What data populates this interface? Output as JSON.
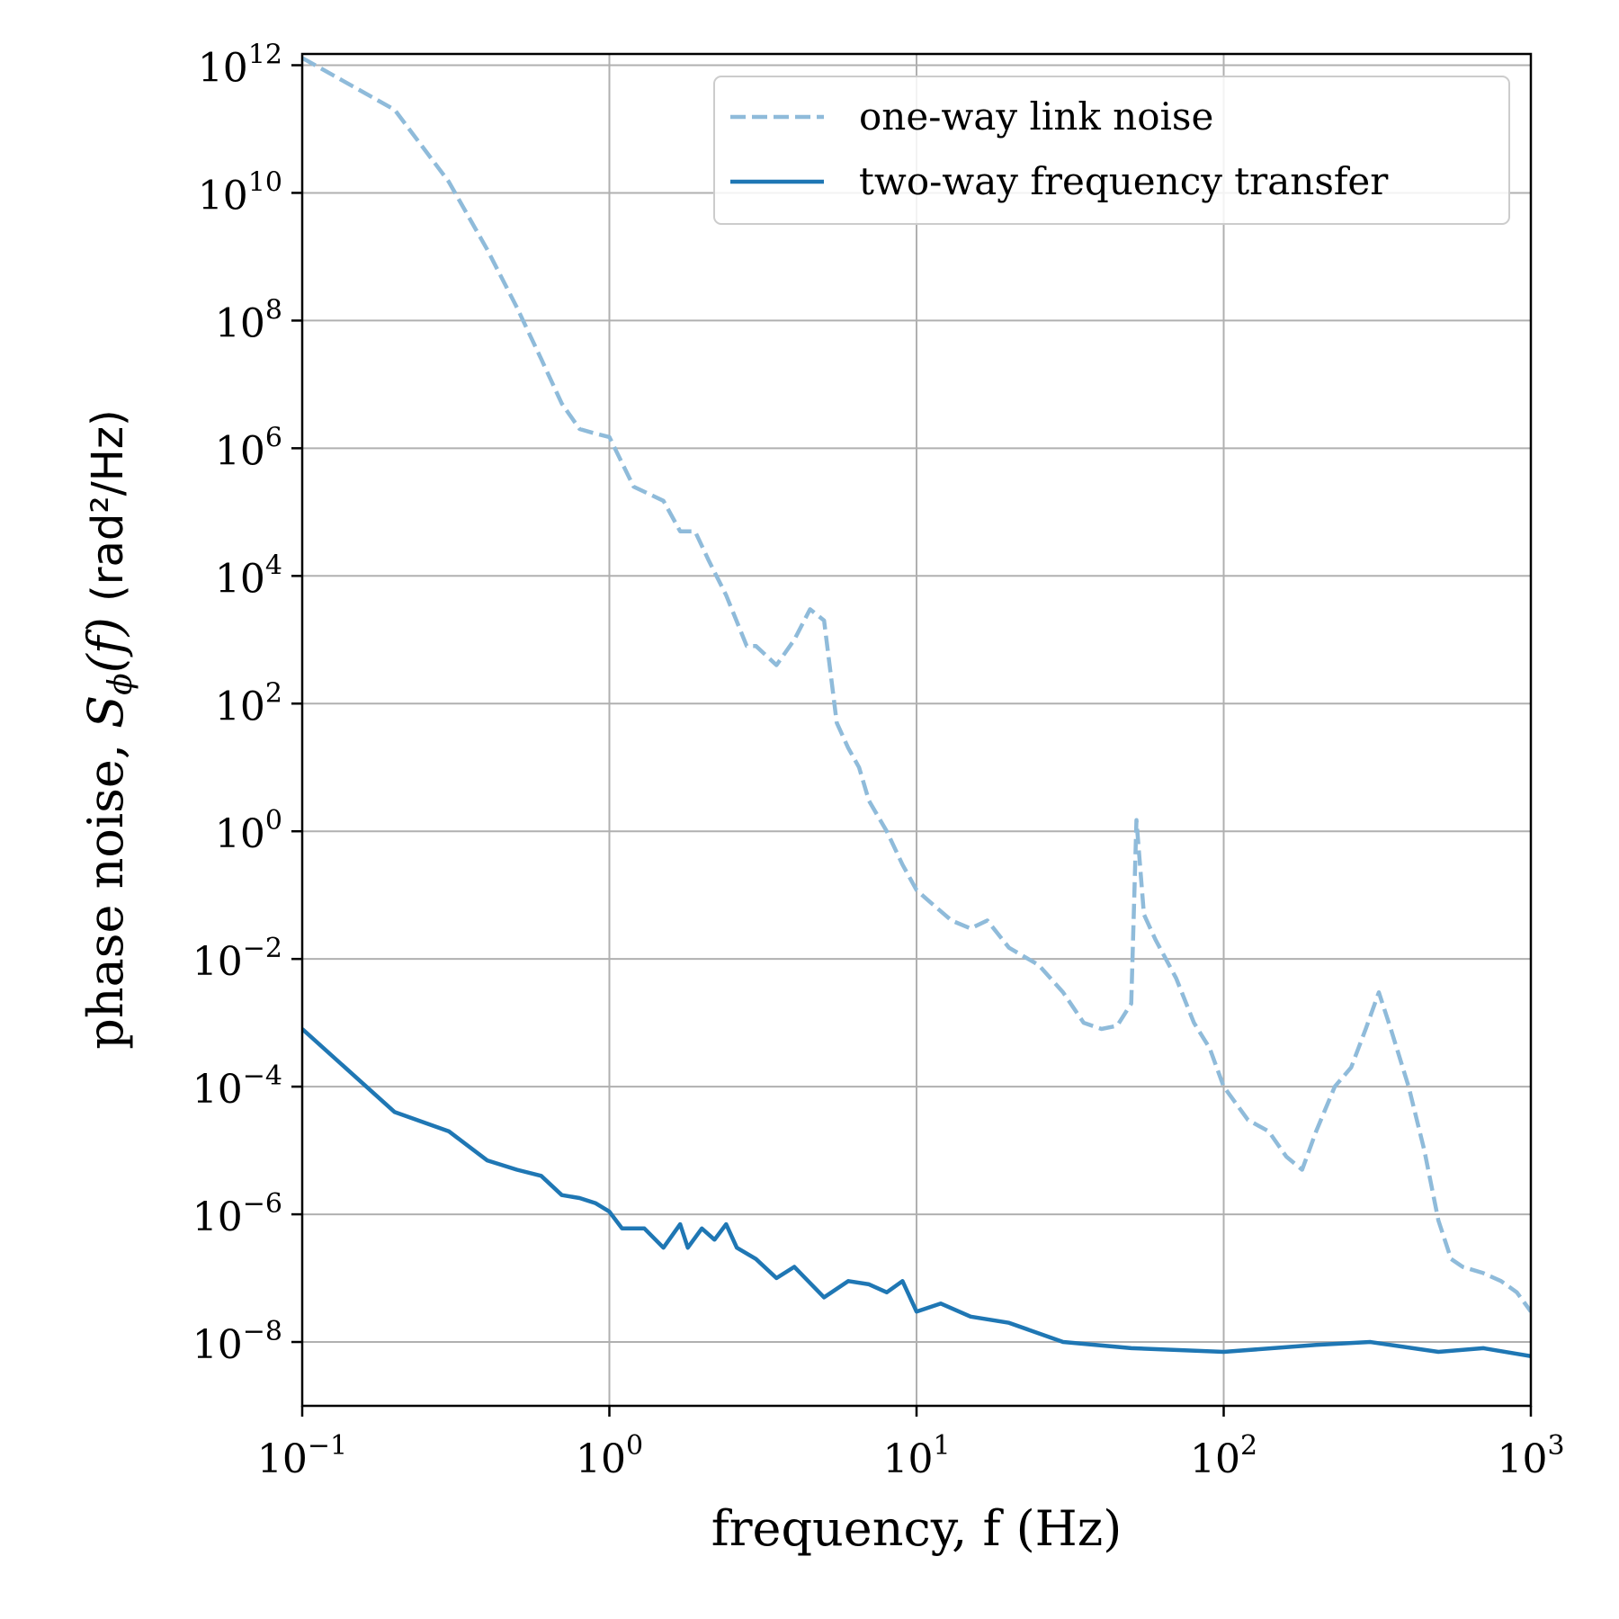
{
  "chart_data": {
    "type": "line",
    "xscale": "log",
    "yscale": "log",
    "xlabel": "frequency, f (Hz)",
    "ylabel_main": "phase noise, ",
    "ylabel_symbol": "S",
    "ylabel_subscript": "ϕ",
    "ylabel_arg": "(f)",
    "ylabel_units": "(rad²/Hz)",
    "xlim": [
      0.1,
      1000
    ],
    "ylim": [
      1e-09,
      1500000000000.0
    ],
    "grid": true,
    "legend_position": "top-right",
    "x_ticks": [
      {
        "value": 0.1,
        "base": "10",
        "exp": "−1"
      },
      {
        "value": 1,
        "base": "10",
        "exp": "0"
      },
      {
        "value": 10,
        "base": "10",
        "exp": "1"
      },
      {
        "value": 100,
        "base": "10",
        "exp": "2"
      },
      {
        "value": 1000,
        "base": "10",
        "exp": "3"
      }
    ],
    "y_ticks": [
      {
        "value": 1000000000000.0,
        "base": "10",
        "exp": "12"
      },
      {
        "value": 10000000000.0,
        "base": "10",
        "exp": "10"
      },
      {
        "value": 100000000.0,
        "base": "10",
        "exp": "8"
      },
      {
        "value": 1000000.0,
        "base": "10",
        "exp": "6"
      },
      {
        "value": 10000.0,
        "base": "10",
        "exp": "4"
      },
      {
        "value": 100.0,
        "base": "10",
        "exp": "2"
      },
      {
        "value": 1,
        "base": "10",
        "exp": "0"
      },
      {
        "value": 0.01,
        "base": "10",
        "exp": "−2"
      },
      {
        "value": 0.0001,
        "base": "10",
        "exp": "−4"
      },
      {
        "value": 1e-06,
        "base": "10",
        "exp": "−6"
      },
      {
        "value": 1e-08,
        "base": "10",
        "exp": "−8"
      }
    ],
    "series": [
      {
        "name": "one-way link noise",
        "style": "dashed",
        "color": "#8fbbda",
        "points": [
          [
            0.1,
            1300000000000.0
          ],
          [
            0.2,
            200000000000.0
          ],
          [
            0.3,
            15000000000.0
          ],
          [
            0.4,
            1300000000.0
          ],
          [
            0.5,
            160000000.0
          ],
          [
            0.6,
            25000000.0
          ],
          [
            0.7,
            5000000.0
          ],
          [
            0.8,
            2000000.0
          ],
          [
            0.9,
            1700000.0
          ],
          [
            1.0,
            1500000.0
          ],
          [
            1.2,
            250000.0
          ],
          [
            1.5,
            150000.0
          ],
          [
            1.7,
            50000.0
          ],
          [
            1.9,
            50000.0
          ],
          [
            2.1,
            18000.0
          ],
          [
            2.4,
            5000.0
          ],
          [
            2.8,
            800.0
          ],
          [
            3.0,
            800.0
          ],
          [
            3.5,
            400.0
          ],
          [
            4.0,
            1000.0
          ],
          [
            4.5,
            3000.0
          ],
          [
            5.0,
            2000.0
          ],
          [
            5.5,
            50.0
          ],
          [
            6.0,
            20.0
          ],
          [
            6.5,
            10.0
          ],
          [
            7.0,
            3
          ],
          [
            8.0,
            1
          ],
          [
            9.0,
            0.3
          ],
          [
            10,
            0.12
          ],
          [
            11,
            0.08
          ],
          [
            13,
            0.04
          ],
          [
            15,
            0.03
          ],
          [
            17,
            0.04
          ],
          [
            20,
            0.015
          ],
          [
            25,
            0.008
          ],
          [
            30,
            0.003
          ],
          [
            35,
            0.001
          ],
          [
            40,
            0.0008
          ],
          [
            45,
            0.0009
          ],
          [
            50,
            0.002
          ],
          [
            52,
            1.5
          ],
          [
            55,
            0.05
          ],
          [
            60,
            0.02
          ],
          [
            70,
            0.005
          ],
          [
            80,
            0.001
          ],
          [
            90,
            0.0004
          ],
          [
            100,
            0.0001
          ],
          [
            120,
            3e-05
          ],
          [
            140,
            2e-05
          ],
          [
            160,
            8e-06
          ],
          [
            180,
            5e-06
          ],
          [
            200,
            2e-05
          ],
          [
            230,
            0.0001
          ],
          [
            260,
            0.0002
          ],
          [
            290,
            0.0008
          ],
          [
            320,
            0.003
          ],
          [
            350,
            0.0008
          ],
          [
            400,
            0.0001
          ],
          [
            450,
            1e-05
          ],
          [
            500,
            8e-07
          ],
          [
            550,
            2e-07
          ],
          [
            600,
            1.5e-07
          ],
          [
            700,
            1.2e-07
          ],
          [
            800,
            9e-08
          ],
          [
            900,
            6e-08
          ],
          [
            1000,
            3e-08
          ]
        ]
      },
      {
        "name": "two-way frequency transfer",
        "style": "solid",
        "color": "#1f77b4",
        "points": [
          [
            0.1,
            0.0008
          ],
          [
            0.2,
            4e-05
          ],
          [
            0.3,
            2e-05
          ],
          [
            0.4,
            7e-06
          ],
          [
            0.5,
            5e-06
          ],
          [
            0.6,
            4e-06
          ],
          [
            0.7,
            2e-06
          ],
          [
            0.8,
            1.8e-06
          ],
          [
            0.9,
            1.5e-06
          ],
          [
            1.0,
            1.1e-06
          ],
          [
            1.1,
            6e-07
          ],
          [
            1.3,
            6e-07
          ],
          [
            1.5,
            3e-07
          ],
          [
            1.7,
            7e-07
          ],
          [
            1.8,
            3e-07
          ],
          [
            2.0,
            6e-07
          ],
          [
            2.2,
            4e-07
          ],
          [
            2.4,
            7e-07
          ],
          [
            2.6,
            3e-07
          ],
          [
            3.0,
            2e-07
          ],
          [
            3.5,
            1e-07
          ],
          [
            4.0,
            1.5e-07
          ],
          [
            5.0,
            5e-08
          ],
          [
            6.0,
            9e-08
          ],
          [
            7.0,
            8e-08
          ],
          [
            8.0,
            6e-08
          ],
          [
            9.0,
            9e-08
          ],
          [
            10,
            3e-08
          ],
          [
            12,
            4e-08
          ],
          [
            15,
            2.5e-08
          ],
          [
            20,
            2e-08
          ],
          [
            30,
            1e-08
          ],
          [
            50,
            8e-09
          ],
          [
            100,
            7e-09
          ],
          [
            200,
            9e-09
          ],
          [
            300,
            1e-08
          ],
          [
            500,
            7e-09
          ],
          [
            700,
            8e-09
          ],
          [
            1000,
            6e-09
          ]
        ]
      }
    ]
  }
}
